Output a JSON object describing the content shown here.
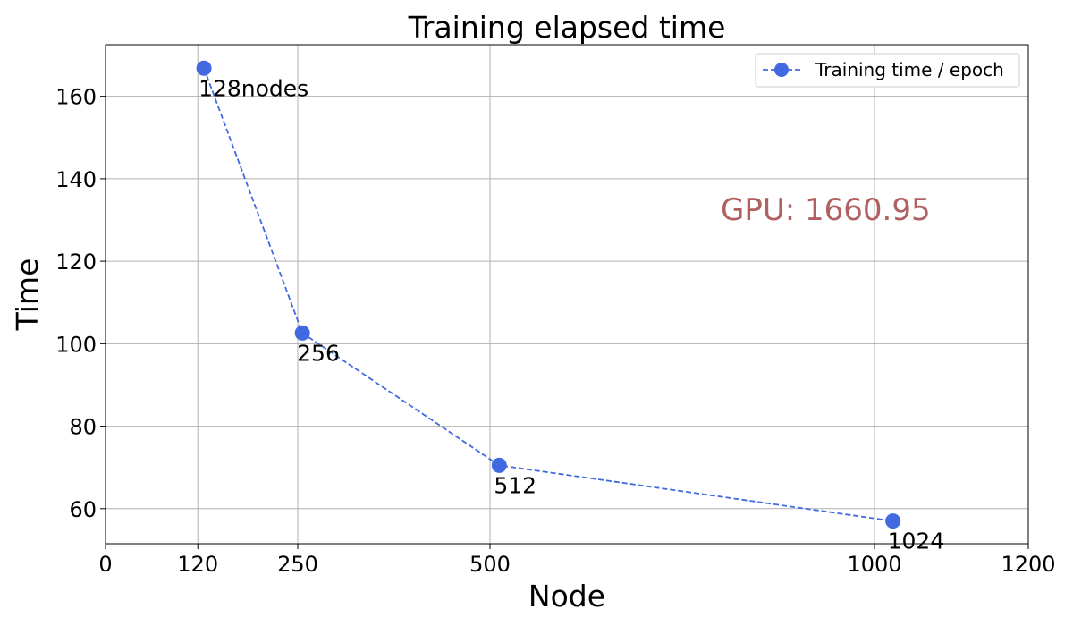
{
  "chart_data": {
    "type": "line",
    "title": "Training elapsed time",
    "xlabel": "Node",
    "ylabel": "Time",
    "xlim": [
      0,
      1200
    ],
    "ylim": [
      51.5,
      172.5
    ],
    "xticks": [
      0,
      120,
      250,
      500,
      1000,
      1200
    ],
    "yticks": [
      60,
      80,
      100,
      120,
      140,
      160
    ],
    "grid": true,
    "legend_position": "top-right",
    "series": [
      {
        "name": "Training time / epoch",
        "color": "#4169e1",
        "line_style": "dashed",
        "marker": "circle",
        "x": [
          128,
          256,
          512,
          1024
        ],
        "y": [
          166.8,
          102.6,
          70.5,
          57.0
        ],
        "labels": [
          "128nodes",
          "256",
          "512",
          "1024"
        ]
      }
    ],
    "annotations": [
      {
        "text": "GPU: 1660.95",
        "color": "#b06060"
      }
    ]
  }
}
